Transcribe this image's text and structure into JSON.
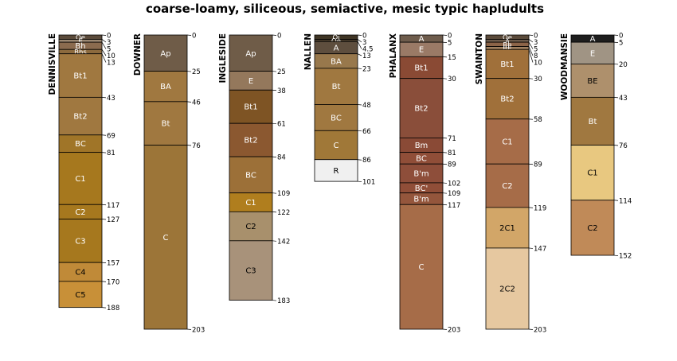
{
  "chart_data": {
    "type": "soil-profile-sketch",
    "title": "coarse-loamy, siliceous, semiactive, mesic typic hapludults",
    "depth_units": "cm",
    "depth_range": [
      0,
      203
    ],
    "profiles": [
      {
        "name": "DENNISVILLE",
        "horizons": [
          {
            "name": "Oe",
            "top": 0,
            "bottom": 3,
            "color": "#5A4A3A",
            "text_color": "#FFFFFF"
          },
          {
            "name": "E",
            "top": 3,
            "bottom": 5,
            "color": "#9C8872",
            "text_color": "#FFFFFF"
          },
          {
            "name": "Bh",
            "top": 5,
            "bottom": 10,
            "color": "#8B6B4F",
            "text_color": "#FFFFFF"
          },
          {
            "name": "Bhs",
            "top": 10,
            "bottom": 13,
            "color": "#8C6A3E",
            "text_color": "#FFFFFF"
          },
          {
            "name": "Bt1",
            "top": 13,
            "bottom": 43,
            "color": "#A07840",
            "text_color": "#FFFFFF"
          },
          {
            "name": "Bt2",
            "top": 43,
            "bottom": 69,
            "color": "#A07840",
            "text_color": "#FFFFFF"
          },
          {
            "name": "BC",
            "top": 69,
            "bottom": 81,
            "color": "#A07528",
            "text_color": "#FFFFFF"
          },
          {
            "name": "C1",
            "top": 81,
            "bottom": 117,
            "color": "#A6781E",
            "text_color": "#FFFFFF"
          },
          {
            "name": "C2",
            "top": 117,
            "bottom": 127,
            "color": "#A6781E",
            "text_color": "#FFFFFF"
          },
          {
            "name": "C3",
            "top": 127,
            "bottom": 157,
            "color": "#A6781E",
            "text_color": "#FFFFFF"
          },
          {
            "name": "C4",
            "top": 157,
            "bottom": 170,
            "color": "#C08A38",
            "text_color": "#000000"
          },
          {
            "name": "C5",
            "top": 170,
            "bottom": 188,
            "color": "#C89038",
            "text_color": "#000000"
          }
        ],
        "depth_labels": [
          "0",
          "3",
          "5",
          "10",
          "13",
          "43",
          "69",
          "81",
          "117",
          "127",
          "157",
          "170",
          "188"
        ]
      },
      {
        "name": "DOWNER",
        "horizons": [
          {
            "name": "Ap",
            "top": 0,
            "bottom": 25,
            "color": "#6F5C48",
            "text_color": "#FFFFFF"
          },
          {
            "name": "BA",
            "top": 25,
            "bottom": 46,
            "color": "#A07840",
            "text_color": "#FFFFFF"
          },
          {
            "name": "Bt",
            "top": 46,
            "bottom": 76,
            "color": "#A07840",
            "text_color": "#FFFFFF"
          },
          {
            "name": "C",
            "top": 76,
            "bottom": 203,
            "color": "#9C7538",
            "text_color": "#FFFFFF"
          }
        ],
        "depth_labels": [
          "0",
          "25",
          "46",
          "76",
          "203"
        ]
      },
      {
        "name": "INGLESIDE",
        "horizons": [
          {
            "name": "Ap",
            "top": 0,
            "bottom": 25,
            "color": "#6F5C48",
            "text_color": "#FFFFFF"
          },
          {
            "name": "E",
            "top": 25,
            "bottom": 38,
            "color": "#94785C",
            "text_color": "#FFFFFF"
          },
          {
            "name": "Bt1",
            "top": 38,
            "bottom": 61,
            "color": "#7E5424",
            "text_color": "#FFFFFF"
          },
          {
            "name": "Bt2",
            "top": 61,
            "bottom": 84,
            "color": "#8B5830",
            "text_color": "#FFFFFF"
          },
          {
            "name": "BC",
            "top": 84,
            "bottom": 109,
            "color": "#9C7038",
            "text_color": "#FFFFFF"
          },
          {
            "name": "C1",
            "top": 109,
            "bottom": 122,
            "color": "#B07E1E",
            "text_color": "#FFFFFF"
          },
          {
            "name": "C2",
            "top": 122,
            "bottom": 142,
            "color": "#A8906C",
            "text_color": "#000000"
          },
          {
            "name": "C3",
            "top": 142,
            "bottom": 183,
            "color": "#A8927A",
            "text_color": "#000000"
          }
        ],
        "depth_labels": [
          "0",
          "25",
          "38",
          "61",
          "84",
          "109",
          "122",
          "142",
          "183"
        ]
      },
      {
        "name": "NALLEN",
        "horizons": [
          {
            "name": "Oi",
            "top": 0,
            "bottom": 3,
            "color": "#3E3424",
            "text_color": "#FFFFFF"
          },
          {
            "name": "Oe",
            "top": 3,
            "bottom": 4.5,
            "color": "#4A3E2E",
            "text_color": "#FFFFFF"
          },
          {
            "name": "A",
            "top": 4.5,
            "bottom": 13,
            "color": "#5E4E3E",
            "text_color": "#FFFFFF"
          },
          {
            "name": "BA",
            "top": 13,
            "bottom": 23,
            "color": "#98784C",
            "text_color": "#FFFFFF"
          },
          {
            "name": "Bt",
            "top": 23,
            "bottom": 48,
            "color": "#A07840",
            "text_color": "#FFFFFF"
          },
          {
            "name": "BC",
            "top": 48,
            "bottom": 66,
            "color": "#A07840",
            "text_color": "#FFFFFF"
          },
          {
            "name": "C",
            "top": 66,
            "bottom": 86,
            "color": "#A07838",
            "text_color": "#FFFFFF"
          },
          {
            "name": "R",
            "top": 86,
            "bottom": 101,
            "color": "#F0F0F0",
            "text_color": "#000000"
          }
        ],
        "depth_labels": [
          "0",
          "3",
          "4.5",
          "13",
          "23",
          "48",
          "66",
          "86",
          "101"
        ]
      },
      {
        "name": "PHALANX",
        "horizons": [
          {
            "name": "A",
            "top": 0,
            "bottom": 5,
            "color": "#6E5C4C",
            "text_color": "#FFFFFF"
          },
          {
            "name": "E",
            "top": 5,
            "bottom": 15,
            "color": "#9A7A66",
            "text_color": "#FFFFFF"
          },
          {
            "name": "Bt1",
            "top": 15,
            "bottom": 30,
            "color": "#8A4A34",
            "text_color": "#FFFFFF"
          },
          {
            "name": "Bt2",
            "top": 30,
            "bottom": 71,
            "color": "#8A4E3A",
            "text_color": "#FFFFFF"
          },
          {
            "name": "Bm",
            "top": 71,
            "bottom": 81,
            "color": "#8A4A36",
            "text_color": "#FFFFFF"
          },
          {
            "name": "BC",
            "top": 81,
            "bottom": 89,
            "color": "#904E38",
            "text_color": "#FFFFFF"
          },
          {
            "name": "B'm",
            "top": 89,
            "bottom": 102,
            "color": "#8E4E3A",
            "text_color": "#FFFFFF"
          },
          {
            "name": "BC'",
            "top": 102,
            "bottom": 109,
            "color": "#904E38",
            "text_color": "#FFFFFF"
          },
          {
            "name": "B'm",
            "top": 109,
            "bottom": 117,
            "color": "#94563C",
            "text_color": "#FFFFFF"
          },
          {
            "name": "C",
            "top": 117,
            "bottom": 203,
            "color": "#A66C48",
            "text_color": "#FFFFFF"
          }
        ],
        "depth_labels": [
          "0",
          "5",
          "15",
          "30",
          "71",
          "81",
          "89",
          "102",
          "109",
          "117",
          "203"
        ]
      },
      {
        "name": "SWAINTON",
        "horizons": [
          {
            "name": "Oe",
            "top": 0,
            "bottom": 3,
            "color": "#5A4A3A",
            "text_color": "#FFFFFF"
          },
          {
            "name": "A",
            "top": 3,
            "bottom": 5,
            "color": "#6E5C4C",
            "text_color": "#FFFFFF"
          },
          {
            "name": "Bh",
            "top": 5,
            "bottom": 8,
            "color": "#8C6448",
            "text_color": "#FFFFFF"
          },
          {
            "name": "BE",
            "top": 8,
            "bottom": 10,
            "color": "#A08060",
            "text_color": "#FFFFFF"
          },
          {
            "name": "Bt1",
            "top": 10,
            "bottom": 30,
            "color": "#A0703A",
            "text_color": "#FFFFFF"
          },
          {
            "name": "Bt2",
            "top": 30,
            "bottom": 58,
            "color": "#A0703A",
            "text_color": "#FFFFFF"
          },
          {
            "name": "C1",
            "top": 58,
            "bottom": 89,
            "color": "#A66C48",
            "text_color": "#FFFFFF"
          },
          {
            "name": "C2",
            "top": 89,
            "bottom": 119,
            "color": "#A66C48",
            "text_color": "#FFFFFF"
          },
          {
            "name": "2C1",
            "top": 119,
            "bottom": 147,
            "color": "#D2A668",
            "text_color": "#000000"
          },
          {
            "name": "2C2",
            "top": 147,
            "bottom": 203,
            "color": "#E6C8A0",
            "text_color": "#000000"
          }
        ],
        "depth_labels": [
          "0",
          "3",
          "5",
          "8",
          "10",
          "30",
          "58",
          "89",
          "119",
          "147",
          "203"
        ]
      },
      {
        "name": "WOODMANSIE",
        "horizons": [
          {
            "name": "A",
            "top": 0,
            "bottom": 5,
            "color": "#1E1E1E",
            "text_color": "#FFFFFF"
          },
          {
            "name": "E",
            "top": 5,
            "bottom": 20,
            "color": "#A09484",
            "text_color": "#FFFFFF"
          },
          {
            "name": "BE",
            "top": 20,
            "bottom": 43,
            "color": "#AE906C",
            "text_color": "#000000"
          },
          {
            "name": "Bt",
            "top": 43,
            "bottom": 76,
            "color": "#A07840",
            "text_color": "#FFFFFF"
          },
          {
            "name": "C1",
            "top": 76,
            "bottom": 114,
            "color": "#E8C880",
            "text_color": "#000000"
          },
          {
            "name": "C2",
            "top": 114,
            "bottom": 152,
            "color": "#C08A58",
            "text_color": "#000000"
          }
        ],
        "depth_labels": [
          "0",
          "5",
          "20",
          "43",
          "76",
          "114",
          "152"
        ]
      }
    ]
  }
}
